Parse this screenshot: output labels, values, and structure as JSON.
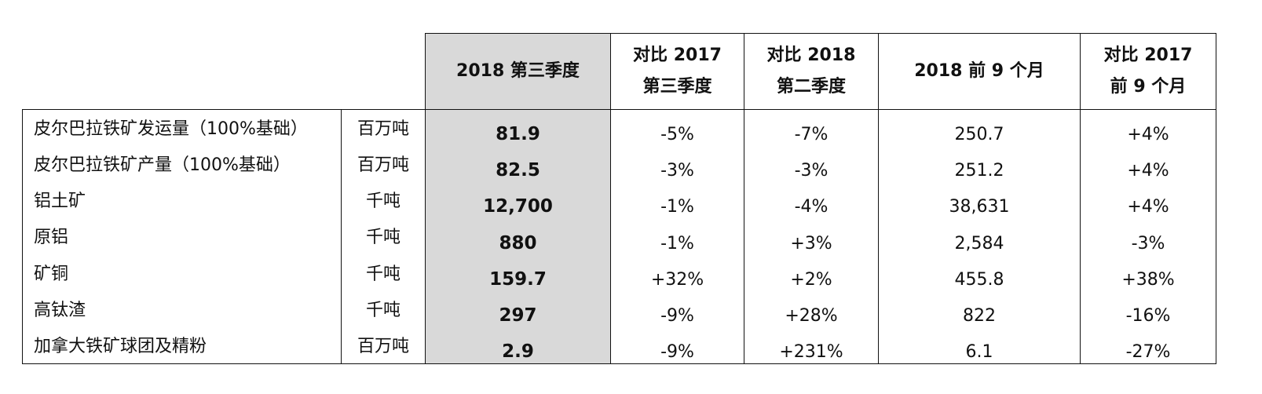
{
  "header": {
    "q3_2018": "2018 第三季度",
    "vs_q3_2017_line1": "对比 2017",
    "vs_q3_2017_line2": "第三季度",
    "vs_q2_2018_line1": "对比 2018",
    "vs_q2_2018_line2": "第二季度",
    "ytd_2018": "2018 前 9 个月",
    "vs_ytd_2017_line1": "对比 2017",
    "vs_ytd_2017_line2": "前 9 个月"
  },
  "rows": [
    {
      "name": "皮尔巴拉铁矿发运量（100%基础）",
      "unit": "百万吨",
      "q3_2018": "81.9",
      "vs_q3_2017": "-5%",
      "vs_q2_2018": "-7%",
      "ytd_2018": "250.7",
      "vs_ytd_2017": "+4%"
    },
    {
      "name": "皮尔巴拉铁矿产量（100%基础）",
      "unit": "百万吨",
      "q3_2018": "82.5",
      "vs_q3_2017": "-3%",
      "vs_q2_2018": "-3%",
      "ytd_2018": "251.2",
      "vs_ytd_2017": "+4%"
    },
    {
      "name": "铝土矿",
      "unit": "千吨",
      "q3_2018": "12,700",
      "vs_q3_2017": "-1%",
      "vs_q2_2018": "-4%",
      "ytd_2018": "38,631",
      "vs_ytd_2017": "+4%"
    },
    {
      "name": "原铝",
      "unit": "千吨",
      "q3_2018": "880",
      "vs_q3_2017": "-1%",
      "vs_q2_2018": "+3%",
      "ytd_2018": "2,584",
      "vs_ytd_2017": "-3%"
    },
    {
      "name": "矿铜",
      "unit": "千吨",
      "q3_2018": "159.7",
      "vs_q3_2017": "+32%",
      "vs_q2_2018": "+2%",
      "ytd_2018": "455.8",
      "vs_ytd_2017": "+38%"
    },
    {
      "name": "高钛渣",
      "unit": "千吨",
      "q3_2018": "297",
      "vs_q3_2017": "-9%",
      "vs_q2_2018": "+28%",
      "ytd_2018": "822",
      "vs_ytd_2017": "-16%"
    },
    {
      "name": "加拿大铁矿球团及精粉",
      "unit": "百万吨",
      "q3_2018": "2.9",
      "vs_q3_2017": "-9%",
      "vs_q2_2018": "+231%",
      "ytd_2018": "6.1",
      "vs_ytd_2017": "-27%"
    }
  ]
}
